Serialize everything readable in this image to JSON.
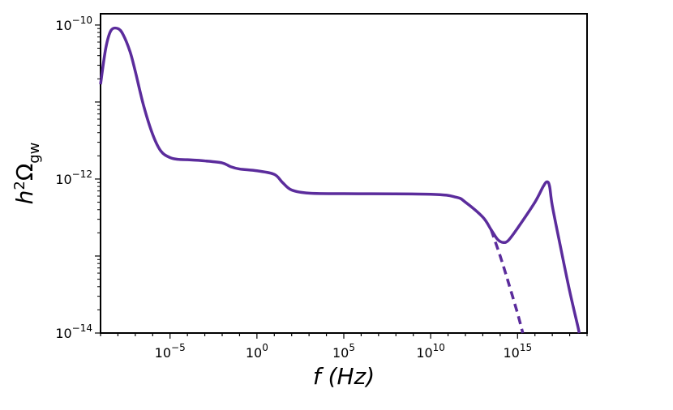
{
  "chart_data": {
    "type": "line",
    "title": "",
    "xlabel": "f (Hz)",
    "ylabel": "h²Ω_gw",
    "xscale": "log",
    "yscale": "log",
    "xlim": [
      1e-09,
      1e+19
    ],
    "ylim": [
      1e-14,
      1.4e-10
    ],
    "x_ticks": [
      {
        "value": 1e-05,
        "label": "10^-5"
      },
      {
        "value": 1,
        "label": "10^0"
      },
      {
        "value": 100000.0,
        "label": "10^5"
      },
      {
        "value": 10000000000.0,
        "label": "10^10"
      },
      {
        "value": 1000000000000000.0,
        "label": "10^15"
      }
    ],
    "y_ticks": [
      {
        "value": 1e-14,
        "label": "10^-14"
      },
      {
        "value": 1e-12,
        "label": "10^-12"
      },
      {
        "value": 1e-10,
        "label": "10^-10"
      }
    ],
    "grid": false,
    "line_color": "#5b2c9c",
    "series": [
      {
        "style": "solid",
        "points": [
          [
            1e-09,
            1.7e-11
          ],
          [
            2e-09,
            5e-11
          ],
          [
            4e-09,
            8.5e-11
          ],
          [
            1e-08,
            9e-11
          ],
          [
            2e-08,
            7.5e-11
          ],
          [
            5e-08,
            4.5e-11
          ],
          [
            1e-07,
            2.5e-11
          ],
          [
            3e-07,
            9e-12
          ],
          [
            1e-06,
            3.8e-12
          ],
          [
            3e-06,
            2.3e-12
          ],
          [
            1e-05,
            1.9e-12
          ],
          [
            3e-05,
            1.8e-12
          ],
          [
            0.0001,
            1.78e-12
          ],
          [
            0.001,
            1.72e-12
          ],
          [
            0.01,
            1.62e-12
          ],
          [
            0.03,
            1.45e-12
          ],
          [
            0.1,
            1.35e-12
          ],
          [
            1,
            1.28e-12
          ],
          [
            10.0,
            1.15e-12
          ],
          [
            30.0,
            9e-13
          ],
          [
            100.0,
            7.2e-13
          ],
          [
            1000.0,
            6.55e-13
          ],
          [
            100000.0,
            6.45e-13
          ],
          [
            10000000000.0,
            6.35e-13
          ],
          [
            300000000000.0,
            5.8e-13
          ],
          [
            1000000000000.0,
            5e-13
          ],
          [
            10000000000000.0,
            3.2e-13
          ],
          [
            30000000000000.0,
            2.2e-13
          ],
          [
            70000000000000.0,
            1.65e-13
          ],
          [
            150000000000000.0,
            1.5e-13
          ],
          [
            300000000000000.0,
            1.6e-13
          ],
          [
            1000000000000000.0,
            2.3e-13
          ],
          [
            1e+16,
            5e-13
          ],
          [
            3e+16,
            8e-13
          ],
          [
            5e+16,
            9.2e-13
          ],
          [
            7e+16,
            8e-13
          ],
          [
            1e+17,
            4.5e-13
          ],
          [
            3e+17,
            1.3e-13
          ],
          [
            1e+18,
            3.5e-14
          ],
          [
            3e+18,
            1.2e-14
          ],
          [
            3.5e+18,
            1e-14
          ]
        ]
      },
      {
        "style": "dashed",
        "points": [
          [
            30000000000000.0,
            2.2e-13
          ],
          [
            100000000000000.0,
            1e-13
          ],
          [
            300000000000000.0,
            4.5e-14
          ],
          [
            1000000000000000.0,
            1.8e-14
          ],
          [
            2000000000000000.0,
            1e-14
          ]
        ]
      }
    ]
  }
}
